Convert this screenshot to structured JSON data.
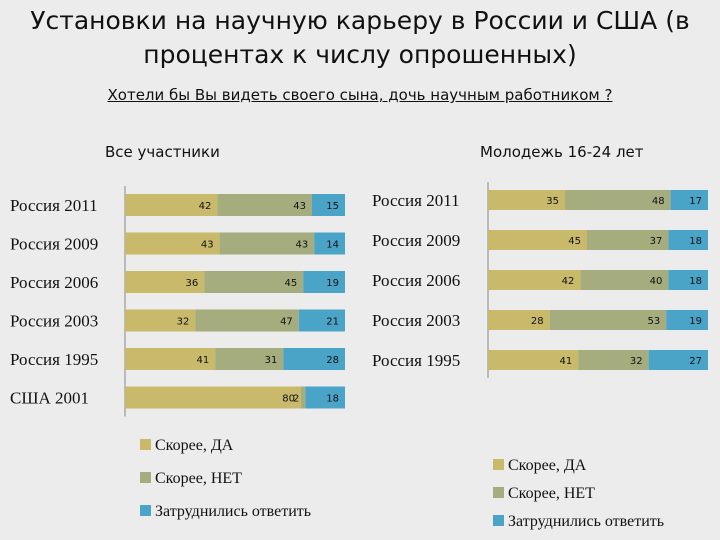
{
  "title": "Установки на научную карьеру в России и США (в процентах к числу опрошенных)",
  "subtitle": "Хотели бы Вы видеть своего сына, дочь научным работником ?",
  "colors": {
    "yes": "#c9b96a",
    "no": "#a5ad7e",
    "hard": "#4aa4c8"
  },
  "chart_data": [
    {
      "type": "bar",
      "orientation": "horizontal",
      "stacked": true,
      "title": "Все участники",
      "categories": [
        "Россия 2011",
        "Россия 2009",
        "Россия 2006",
        "Россия 2003",
        "Россия 1995",
        "США 2001"
      ],
      "series": [
        {
          "name": "Скорее, ДА",
          "values": [
            42,
            43,
            36,
            32,
            41,
            80
          ]
        },
        {
          "name": "Скорее, НЕТ",
          "values": [
            43,
            43,
            45,
            47,
            31,
            2
          ]
        },
        {
          "name": "Затруднились ответить",
          "values": [
            15,
            14,
            19,
            21,
            28,
            18
          ]
        }
      ],
      "legend": {
        "position": "bottom",
        "items": [
          "Скорее, ДА",
          "Скорее, НЕТ",
          "Затруднились ответить"
        ]
      }
    },
    {
      "type": "bar",
      "orientation": "horizontal",
      "stacked": true,
      "title": "Молодежь 16-24 лет",
      "categories": [
        "Россия 2011",
        "Россия 2009",
        "Россия 2006",
        "Россия 2003",
        "Россия 1995"
      ],
      "series": [
        {
          "name": "Скорее, ДА",
          "values": [
            35,
            45,
            42,
            28,
            41
          ]
        },
        {
          "name": "Скорее, НЕТ",
          "values": [
            48,
            37,
            40,
            53,
            32
          ]
        },
        {
          "name": "Затруднились ответить",
          "values": [
            17,
            18,
            18,
            19,
            27
          ]
        }
      ],
      "legend": {
        "position": "bottom-right",
        "items": [
          "Скорее, ДА",
          "Скорее, НЕТ",
          "Затруднились ответить"
        ]
      }
    }
  ]
}
